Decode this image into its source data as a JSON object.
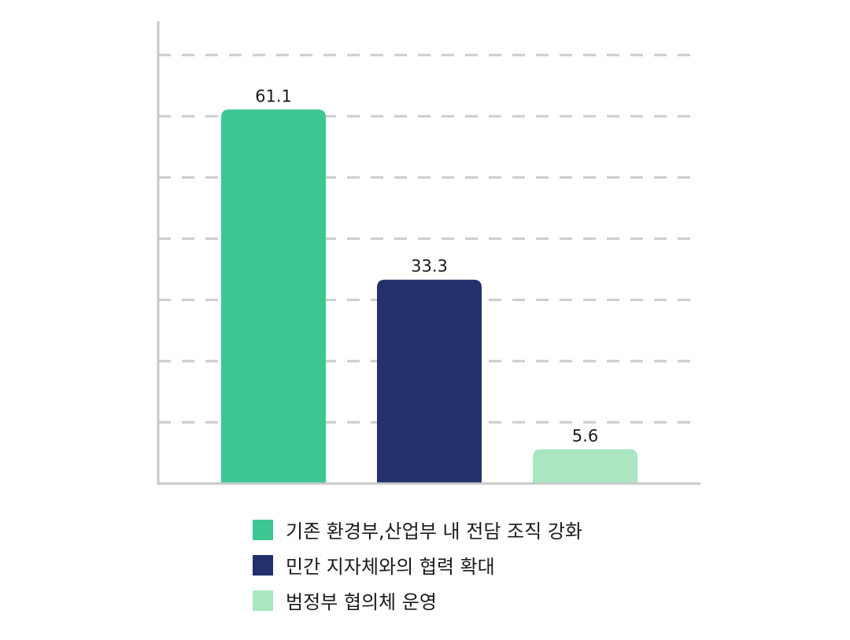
{
  "chart_data": {
    "type": "bar",
    "categories": [
      "기존 환경부,산업부 내 전담 조직 강화",
      "민간 지자체와의 협력 확대",
      "범정부 협의체 운영"
    ],
    "values": [
      61.1,
      33.3,
      5.6
    ],
    "data_labels": [
      "61.1",
      "33.3",
      "5.6"
    ],
    "colors": [
      "#3cc792",
      "#22306b",
      "#aae6c0"
    ],
    "ylim": [
      0,
      70
    ],
    "grid": true,
    "grid_style": "dashed",
    "legend_placement": "bottom"
  },
  "legend": {
    "items": [
      {
        "label": "기존 환경부,산업부 내 전담 조직 강화",
        "color": "#3cc792"
      },
      {
        "label": "민간 지자체와의 협력 확대",
        "color": "#22306b"
      },
      {
        "label": "범정부 협의체 운영",
        "color": "#aae6c0"
      }
    ]
  }
}
